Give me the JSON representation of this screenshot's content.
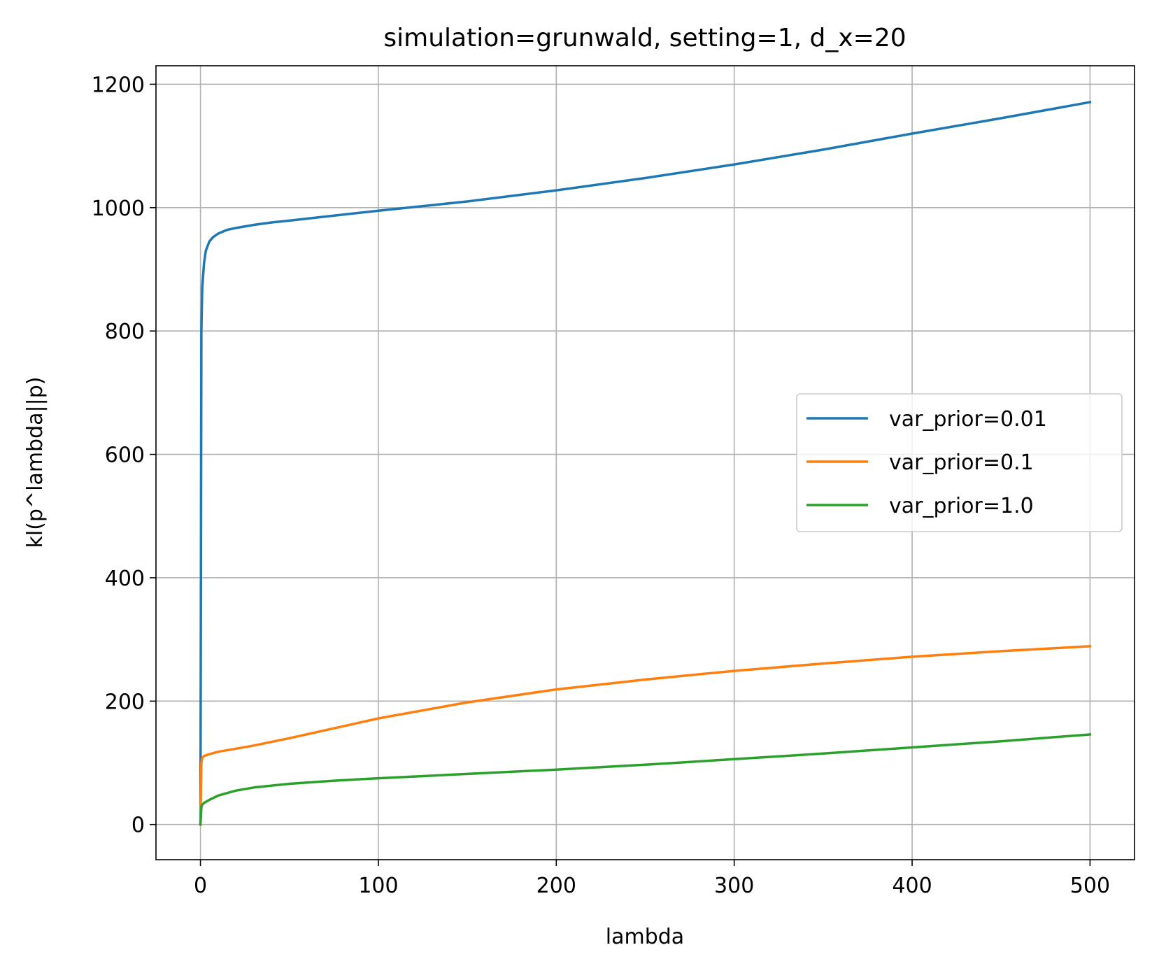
{
  "chart_data": {
    "type": "line",
    "title": "simulation=grunwald, setting=1, d_x=20",
    "xlabel": "lambda",
    "ylabel": "kl(p^lambda||p)",
    "xlim": [
      -25,
      525
    ],
    "ylim": [
      -57,
      1230
    ],
    "xticks": [
      0,
      100,
      200,
      300,
      400,
      500
    ],
    "yticks": [
      0,
      200,
      400,
      600,
      800,
      1000,
      1200
    ],
    "xtick_labels": [
      "0",
      "100",
      "200",
      "300",
      "400",
      "500"
    ],
    "ytick_labels": [
      "0",
      "200",
      "400",
      "600",
      "800",
      "1000",
      "1200"
    ],
    "grid": true,
    "legend_position": "center-right",
    "series": [
      {
        "name": "var_prior=0.01",
        "color": "#1f77b4",
        "x": [
          0,
          0.5,
          1,
          2,
          3,
          5,
          7,
          10,
          15,
          20,
          30,
          40,
          50,
          75,
          100,
          150,
          200,
          250,
          300,
          350,
          400,
          450,
          500
        ],
        "y": [
          0,
          800,
          870,
          910,
          930,
          945,
          952,
          958,
          964,
          967,
          972,
          976,
          979,
          987,
          995,
          1010,
          1028,
          1048,
          1070,
          1094,
          1120,
          1145,
          1171
        ]
      },
      {
        "name": "var_prior=0.1",
        "color": "#ff7f0e",
        "x": [
          0,
          0.5,
          1,
          2,
          5,
          10,
          20,
          30,
          50,
          75,
          100,
          150,
          200,
          250,
          300,
          350,
          400,
          450,
          500
        ],
        "y": [
          0,
          100,
          108,
          111,
          114,
          118,
          123,
          128,
          140,
          156,
          172,
          198,
          219,
          235,
          249,
          261,
          272,
          281,
          289
        ]
      },
      {
        "name": "var_prior=1.0",
        "color": "#2ca02c",
        "x": [
          0,
          0.5,
          1,
          2,
          5,
          10,
          20,
          30,
          50,
          75,
          100,
          150,
          200,
          250,
          300,
          350,
          400,
          450,
          500
        ],
        "y": [
          0,
          28,
          32,
          35,
          40,
          47,
          55,
          60,
          66,
          71,
          75,
          82,
          89,
          97,
          106,
          115,
          125,
          135,
          146
        ]
      }
    ]
  }
}
